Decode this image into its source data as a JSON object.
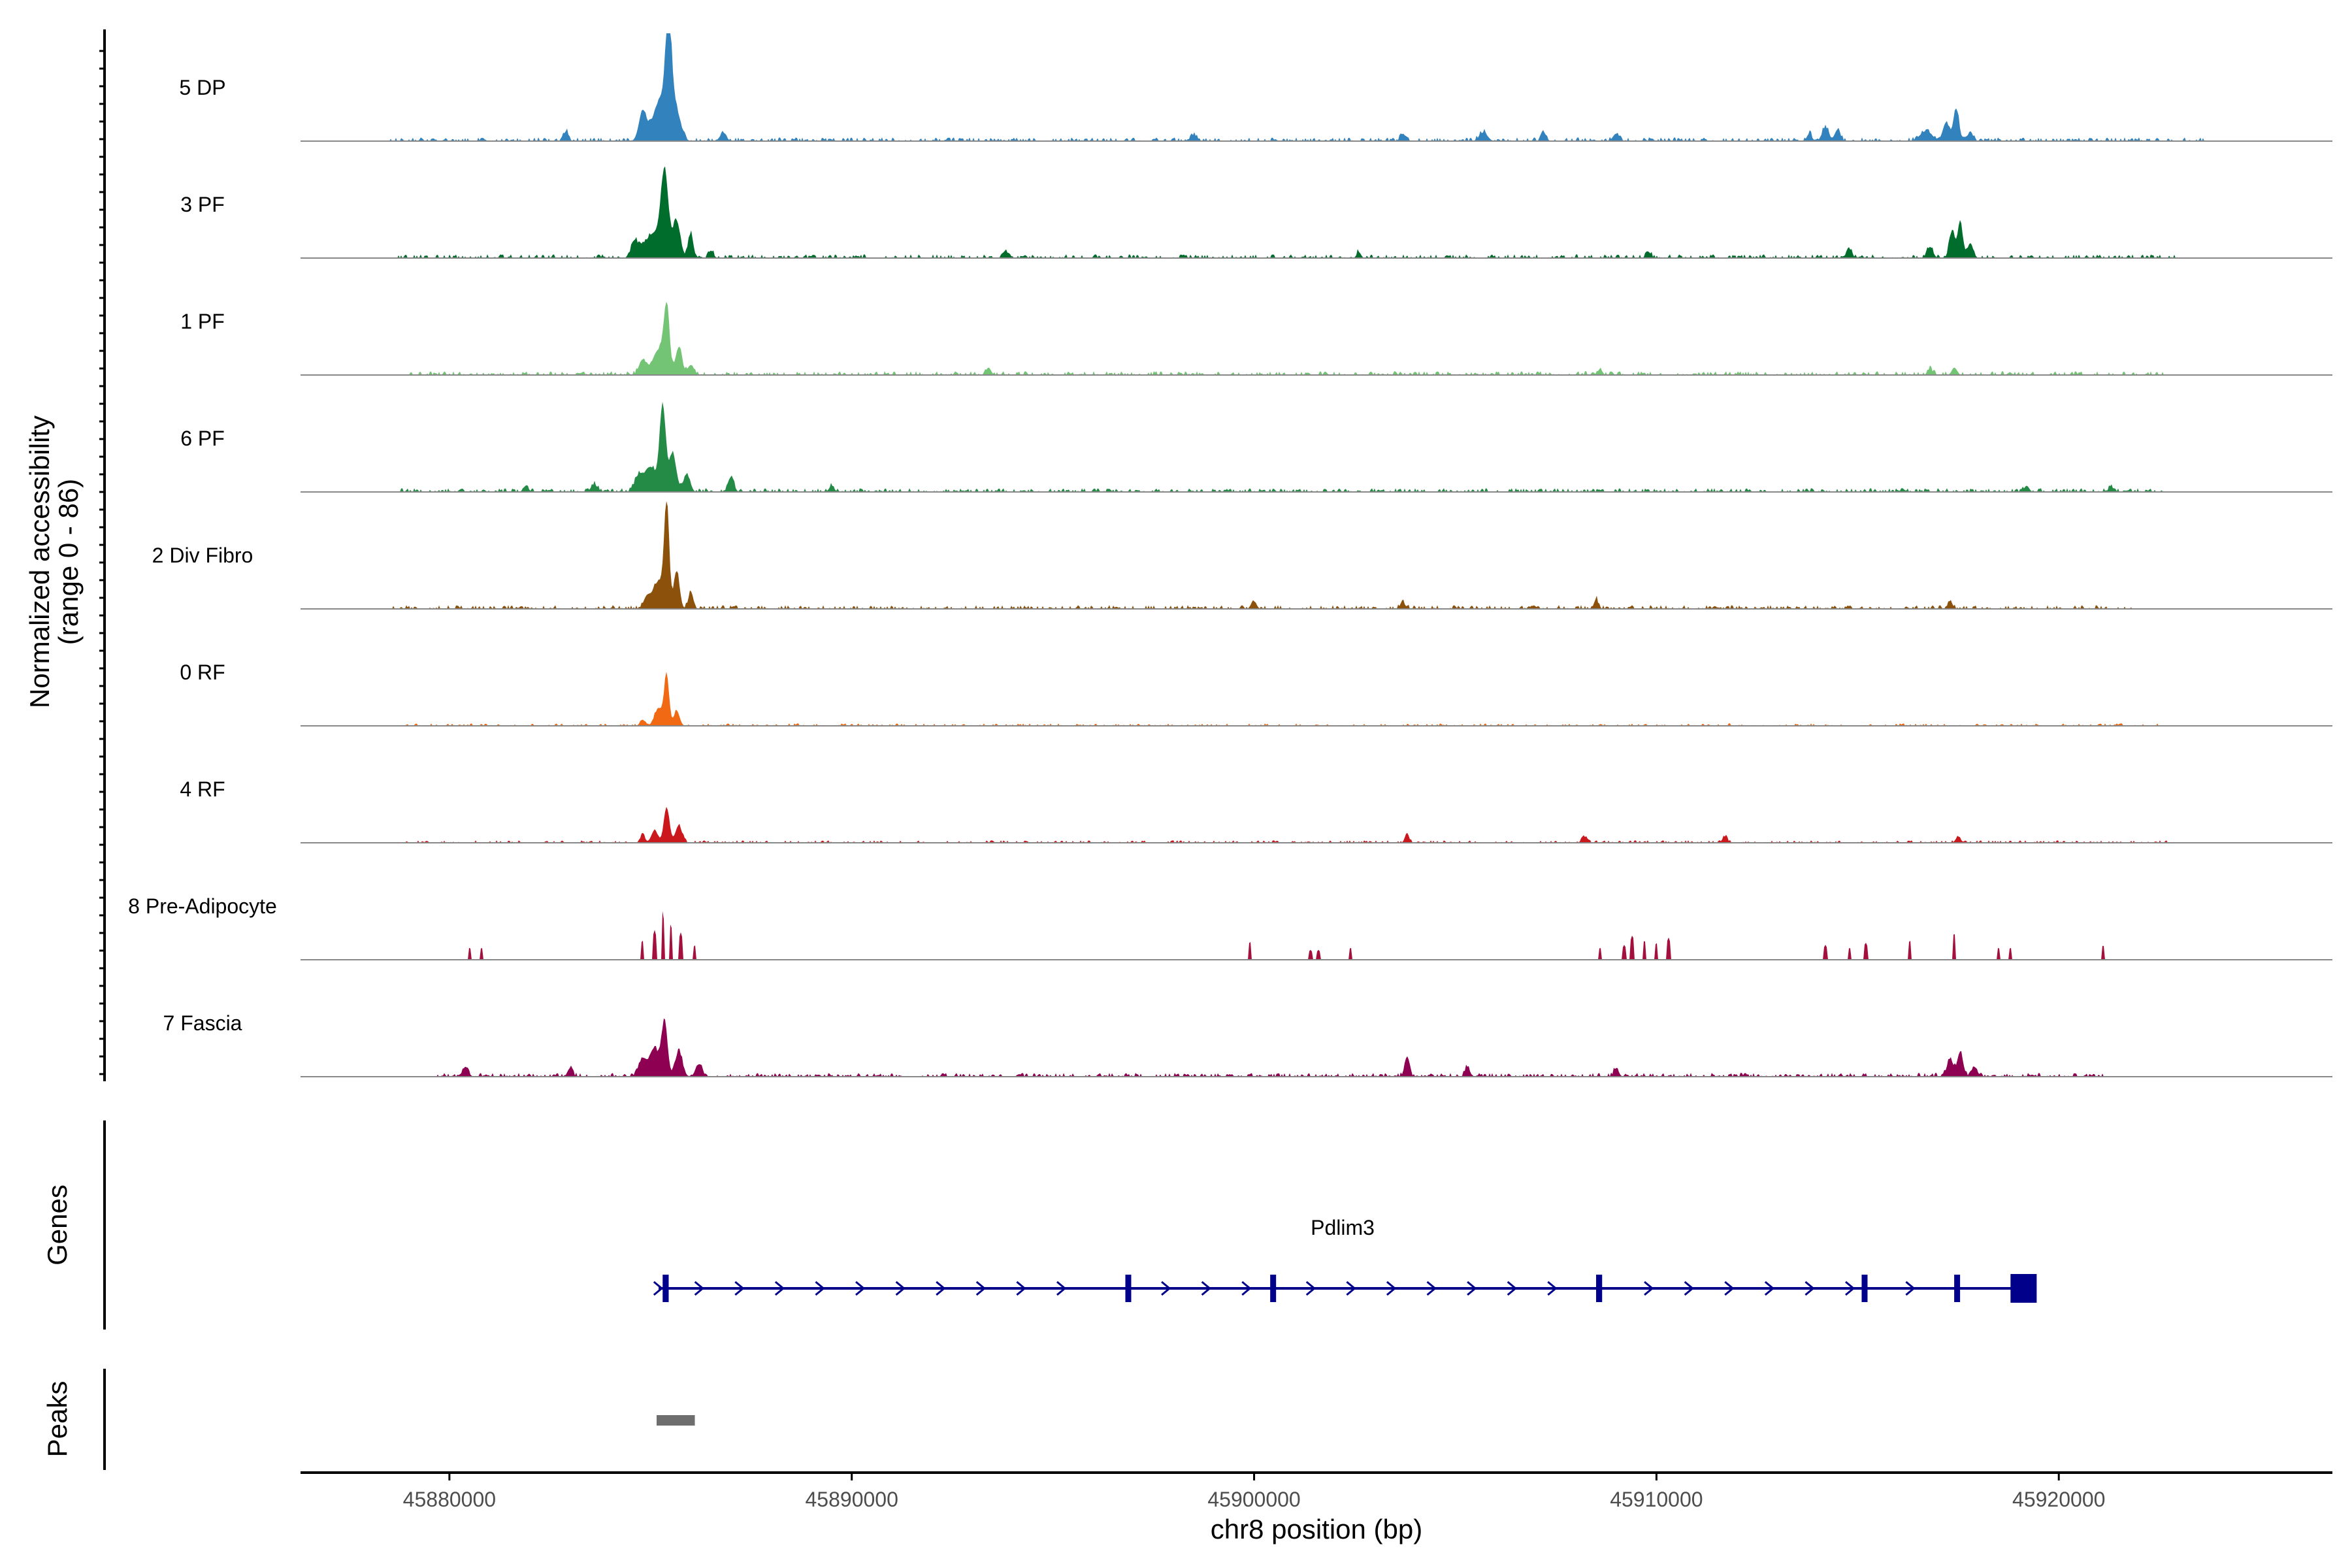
{
  "chart_data": {
    "type": "area",
    "title": "",
    "xlabel": "chr8 position (bp)",
    "ylabel_line1": "Normalized accessibility",
    "ylabel_line2": "(range 0 - 86)",
    "ylim": [
      0,
      86
    ],
    "xlim": [
      45876300,
      45926800
    ],
    "x_ticks": [
      45880000,
      45890000,
      45900000,
      45910000,
      45920000
    ],
    "x_tick_labels": [
      "45880000",
      "45890000",
      "45900000",
      "45910000",
      "45920000"
    ],
    "tracks": [
      {
        "name": "5 DP",
        "color": "#3182bd",
        "style": "smooth",
        "peaks": [
          [
            45885200,
            6,
            250
          ],
          [
            45885450,
            86,
            70
          ],
          [
            45885300,
            30,
            200
          ],
          [
            45885650,
            18,
            110
          ],
          [
            45884800,
            22,
            90
          ],
          [
            45882900,
            8,
            60
          ],
          [
            45886800,
            6,
            80
          ],
          [
            45898500,
            5,
            80
          ],
          [
            45903700,
            6,
            60
          ],
          [
            45905700,
            7,
            100
          ],
          [
            45907200,
            7,
            60
          ],
          [
            45909000,
            6,
            80
          ],
          [
            45913800,
            6,
            60
          ],
          [
            45914200,
            11,
            80
          ],
          [
            45914500,
            9,
            70
          ],
          [
            45916700,
            8,
            150
          ],
          [
            45917200,
            15,
            80
          ],
          [
            45917450,
            26,
            70
          ],
          [
            45917800,
            8,
            60
          ]
        ],
        "noise": [
          45878500,
          45923600,
          3,
          0.55
        ]
      },
      {
        "name": "3 PF",
        "color": "#006d2c",
        "style": "smooth",
        "peaks": [
          [
            45885100,
            20,
            250
          ],
          [
            45885350,
            60,
            90
          ],
          [
            45885650,
            28,
            90
          ],
          [
            45886000,
            20,
            60
          ],
          [
            45884600,
            12,
            80
          ],
          [
            45886500,
            6,
            60
          ],
          [
            45893800,
            5,
            60
          ],
          [
            45902600,
            5,
            50
          ],
          [
            45909800,
            5,
            60
          ],
          [
            45914800,
            7,
            60
          ],
          [
            45916800,
            9,
            70
          ],
          [
            45917350,
            22,
            70
          ],
          [
            45917550,
            30,
            60
          ],
          [
            45917800,
            12,
            70
          ]
        ],
        "noise": [
          45878700,
          45922900,
          3,
          0.5
        ]
      },
      {
        "name": "1 PF",
        "color": "#74c476",
        "style": "smooth",
        "peaks": [
          [
            45884800,
            12,
            90
          ],
          [
            45885200,
            20,
            150
          ],
          [
            45885400,
            50,
            70
          ],
          [
            45885700,
            22,
            80
          ],
          [
            45886000,
            8,
            80
          ],
          [
            45893400,
            6,
            60
          ],
          [
            45908600,
            5,
            50
          ],
          [
            45916800,
            5,
            60
          ],
          [
            45917400,
            6,
            60
          ]
        ],
        "noise": [
          45879000,
          45922600,
          3,
          0.5
        ]
      },
      {
        "name": "6 PF",
        "color": "#238b45",
        "style": "smooth",
        "peaks": [
          [
            45884700,
            12,
            100
          ],
          [
            45885000,
            20,
            140
          ],
          [
            45885300,
            68,
            75
          ],
          [
            45885550,
            30,
            90
          ],
          [
            45885900,
            14,
            80
          ],
          [
            45887000,
            12,
            70
          ],
          [
            45883600,
            6,
            80
          ],
          [
            45881900,
            5,
            60
          ],
          [
            45889500,
            5,
            60
          ],
          [
            45919200,
            5,
            60
          ],
          [
            45921300,
            4,
            60
          ]
        ],
        "noise": [
          45878800,
          45922600,
          3,
          0.6
        ]
      },
      {
        "name": "2 Div Fibro",
        "color": "#8c510a",
        "style": "smooth",
        "peaks": [
          [
            45884900,
            8,
            80
          ],
          [
            45885200,
            22,
            150
          ],
          [
            45885400,
            80,
            60
          ],
          [
            45885650,
            30,
            70
          ],
          [
            45886000,
            14,
            60
          ],
          [
            45900000,
            6,
            60
          ],
          [
            45903700,
            5,
            60
          ],
          [
            45908500,
            8,
            50
          ],
          [
            45917300,
            6,
            60
          ]
        ],
        "noise": [
          45878600,
          45921800,
          3,
          0.5
        ]
      },
      {
        "name": "0 RF",
        "color": "#f16913",
        "style": "smooth",
        "peaks": [
          [
            45884800,
            5,
            60
          ],
          [
            45885200,
            14,
            100
          ],
          [
            45885400,
            40,
            60
          ],
          [
            45885650,
            12,
            70
          ]
        ],
        "noise": [
          45878800,
          45922700,
          2,
          0.35
        ]
      },
      {
        "name": "4 RF",
        "color": "#cb181d",
        "style": "smooth",
        "peaks": [
          [
            45884800,
            6,
            60
          ],
          [
            45885100,
            10,
            80
          ],
          [
            45885400,
            28,
            70
          ],
          [
            45885700,
            14,
            80
          ],
          [
            45903800,
            8,
            50
          ],
          [
            45908200,
            5,
            60
          ],
          [
            45911700,
            5,
            60
          ],
          [
            45917500,
            5,
            60
          ]
        ],
        "noise": [
          45878900,
          45922800,
          2,
          0.45
        ]
      },
      {
        "name": "8 Pre-Adipocyte",
        "color": "#a50f3d",
        "style": "spiky",
        "peaks": [
          [
            45880500,
            10,
            40
          ],
          [
            45880800,
            10,
            40
          ],
          [
            45884800,
            16,
            40
          ],
          [
            45885100,
            24,
            40
          ],
          [
            45885300,
            40,
            30
          ],
          [
            45885500,
            30,
            30
          ],
          [
            45885750,
            22,
            40
          ],
          [
            45886100,
            12,
            40
          ],
          [
            45899900,
            15,
            40
          ],
          [
            45901400,
            8,
            40
          ],
          [
            45901600,
            8,
            40
          ],
          [
            45902400,
            10,
            40
          ],
          [
            45908600,
            10,
            40
          ],
          [
            45909200,
            12,
            40
          ],
          [
            45909400,
            20,
            40
          ],
          [
            45909700,
            16,
            40
          ],
          [
            45910000,
            14,
            40
          ],
          [
            45910300,
            18,
            40
          ],
          [
            45914200,
            12,
            40
          ],
          [
            45914800,
            10,
            40
          ],
          [
            45915200,
            14,
            40
          ],
          [
            45916300,
            16,
            40
          ],
          [
            45917400,
            22,
            40
          ],
          [
            45918500,
            10,
            40
          ],
          [
            45918800,
            10,
            40
          ],
          [
            45921100,
            12,
            40
          ]
        ],
        "noise": [
          0,
          0,
          0,
          0
        ]
      },
      {
        "name": "7 Fascia",
        "color": "#8e0152",
        "style": "smooth",
        "peaks": [
          [
            45884800,
            14,
            100
          ],
          [
            45885100,
            22,
            120
          ],
          [
            45885350,
            44,
            70
          ],
          [
            45885700,
            20,
            90
          ],
          [
            45886200,
            10,
            80
          ],
          [
            45880400,
            8,
            70
          ],
          [
            45883000,
            7,
            60
          ],
          [
            45903800,
            16,
            60
          ],
          [
            45905300,
            8,
            60
          ],
          [
            45909000,
            7,
            60
          ],
          [
            45917300,
            14,
            80
          ],
          [
            45917550,
            20,
            70
          ],
          [
            45917900,
            8,
            70
          ]
        ],
        "noise": [
          45879600,
          45921200,
          3,
          0.55
        ]
      }
    ],
    "gene": {
      "label": "Pdlim3",
      "start": 45885200,
      "end": 45919400,
      "exons": [
        [
          45885300,
          45885450
        ],
        [
          45896800,
          45896900
        ],
        [
          45900400,
          45900450
        ],
        [
          45908500,
          45908650
        ],
        [
          45915100,
          45915180
        ],
        [
          45917400,
          45917470
        ],
        [
          45918800,
          45919450
        ]
      ],
      "arrows": [
        45885180,
        45886200,
        45887200,
        45888200,
        45889200,
        45890200,
        45891200,
        45892200,
        45893200,
        45894200,
        45895200,
        45897800,
        45898800,
        45899800,
        45901400,
        45902400,
        45903400,
        45904400,
        45905400,
        45906400,
        45907400,
        45909800,
        45910800,
        45911800,
        45912800,
        45913800,
        45914800,
        45916300
      ]
    },
    "peaks_track": {
      "regions": [
        [
          45885150,
          45886100
        ]
      ],
      "color": "#6e6e6e"
    },
    "panel_labels": {
      "genes": "Genes",
      "peaks": "Peaks"
    }
  }
}
